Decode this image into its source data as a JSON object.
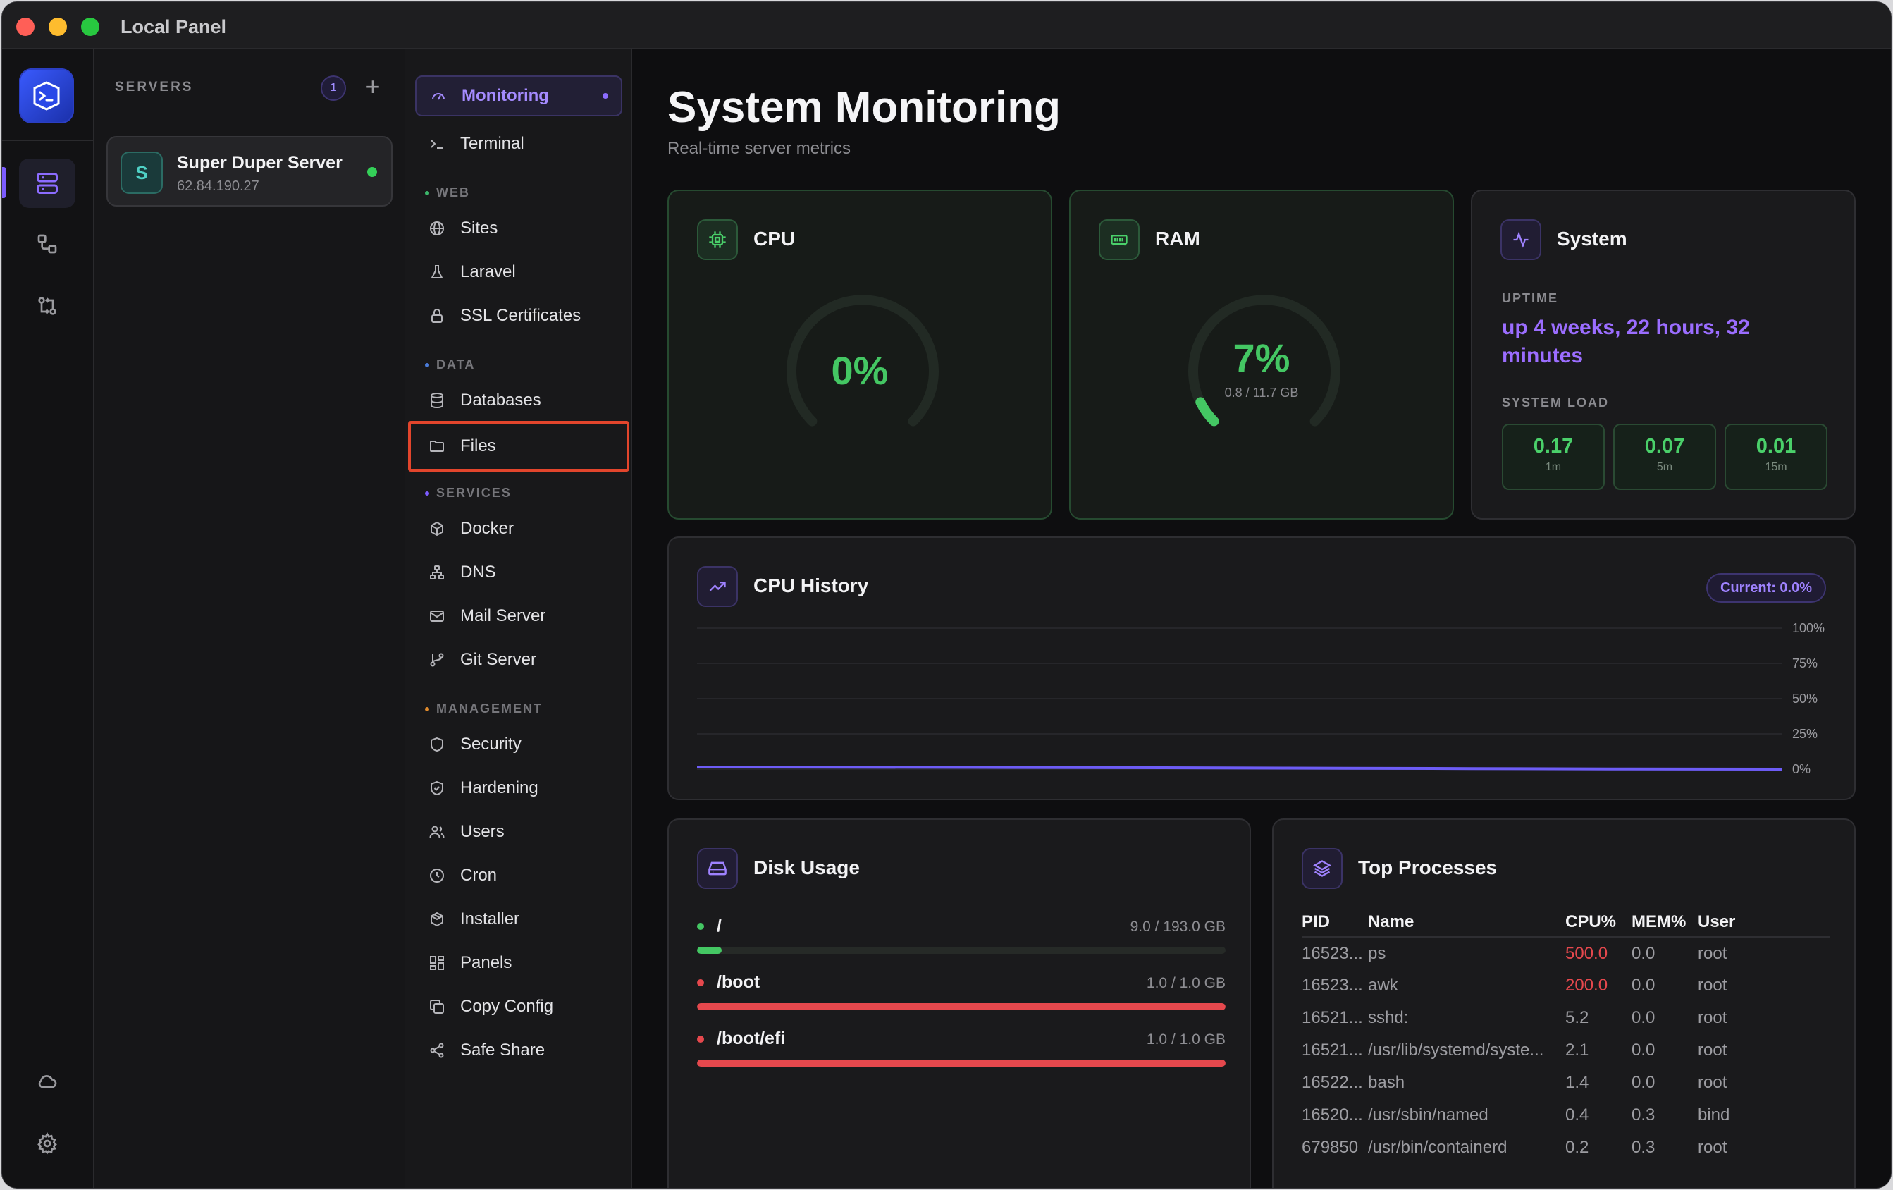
{
  "window": {
    "title": "Local Panel"
  },
  "servers": {
    "heading": "SERVERS",
    "count": "1",
    "add_symbol": "+",
    "items": [
      {
        "initial": "S",
        "name": "Super Duper Server",
        "ip": "62.84.190.27",
        "status_color": "#34d058"
      }
    ]
  },
  "nav": {
    "items": [
      {
        "label": "Monitoring",
        "icon": "gauge-icon",
        "active": true
      },
      {
        "label": "Terminal",
        "icon": "terminal-icon"
      }
    ],
    "sections": [
      {
        "title": "WEB",
        "color": "#3bb56a",
        "items": [
          "Sites",
          "Laravel",
          "SSL Certificates"
        ]
      },
      {
        "title": "DATA",
        "color": "#4a7bd8",
        "items": [
          "Databases",
          "Files"
        ]
      },
      {
        "title": "SERVICES",
        "color": "#7c5cff",
        "items": [
          "Docker",
          "DNS",
          "Mail Server",
          "Git Server"
        ]
      },
      {
        "title": "MANAGEMENT",
        "color": "#e08a2c",
        "items": [
          "Security",
          "Hardening",
          "Users",
          "Cron",
          "Installer",
          "Panels",
          "Copy Config",
          "Safe Share"
        ]
      }
    ]
  },
  "page": {
    "title": "System Monitoring",
    "subtitle": "Real-time server metrics"
  },
  "cpu": {
    "title": "CPU",
    "value": "0%",
    "percent": 0
  },
  "ram": {
    "title": "RAM",
    "value": "7%",
    "percent": 7,
    "detail": "0.8 / 11.7 GB"
  },
  "system": {
    "title": "System",
    "uptime_label": "UPTIME",
    "uptime": "up 4 weeks, 22 hours, 32 minutes",
    "load_label": "SYSTEM LOAD",
    "load": [
      {
        "value": "0.17",
        "period": "1m"
      },
      {
        "value": "0.07",
        "period": "5m"
      },
      {
        "value": "0.01",
        "period": "15m"
      }
    ]
  },
  "cpu_history": {
    "title": "CPU History",
    "current": "Current: 0.0%",
    "ticks": [
      "100%",
      "75%",
      "50%",
      "25%",
      "0%"
    ],
    "line_color": "#6d5cf6"
  },
  "chart_data": {
    "type": "line",
    "title": "CPU History",
    "ylim": [
      0,
      100
    ],
    "y_ticks": [
      "100%",
      "75%",
      "50%",
      "25%",
      "0%"
    ],
    "series": [
      {
        "values": [
          1.5,
          1.4,
          1.2,
          1.0,
          0.7,
          0.4,
          0.1,
          0.0
        ]
      }
    ],
    "grid": true
  },
  "disk": {
    "title": "Disk Usage",
    "items": [
      {
        "mount": "/",
        "size": "9.0 / 193.0 GB",
        "fraction": 0.047,
        "color": "#44c763"
      },
      {
        "mount": "/boot",
        "size": "1.0 / 1.0 GB",
        "fraction": 1.0,
        "color": "#e5484d"
      },
      {
        "mount": "/boot/efi",
        "size": "1.0 / 1.0 GB",
        "fraction": 1.0,
        "color": "#e5484d"
      }
    ]
  },
  "processes": {
    "title": "Top Processes",
    "columns": [
      "PID",
      "Name",
      "CPU%",
      "MEM%",
      "User"
    ],
    "rows": [
      [
        "16523...",
        "ps",
        "500.0",
        "0.0",
        "root"
      ],
      [
        "16523...",
        "awk",
        "200.0",
        "0.0",
        "root"
      ],
      [
        "16521...",
        "sshd:",
        "5.2",
        "0.0",
        "root"
      ],
      [
        "16521...",
        "/usr/lib/systemd/syste...",
        "2.1",
        "0.0",
        "root"
      ],
      [
        "16522...",
        "bash",
        "1.4",
        "0.0",
        "root"
      ],
      [
        "16520...",
        "/usr/sbin/named",
        "0.4",
        "0.3",
        "bind"
      ],
      [
        "679850",
        "/usr/bin/containerd",
        "0.2",
        "0.3",
        "root"
      ]
    ]
  }
}
